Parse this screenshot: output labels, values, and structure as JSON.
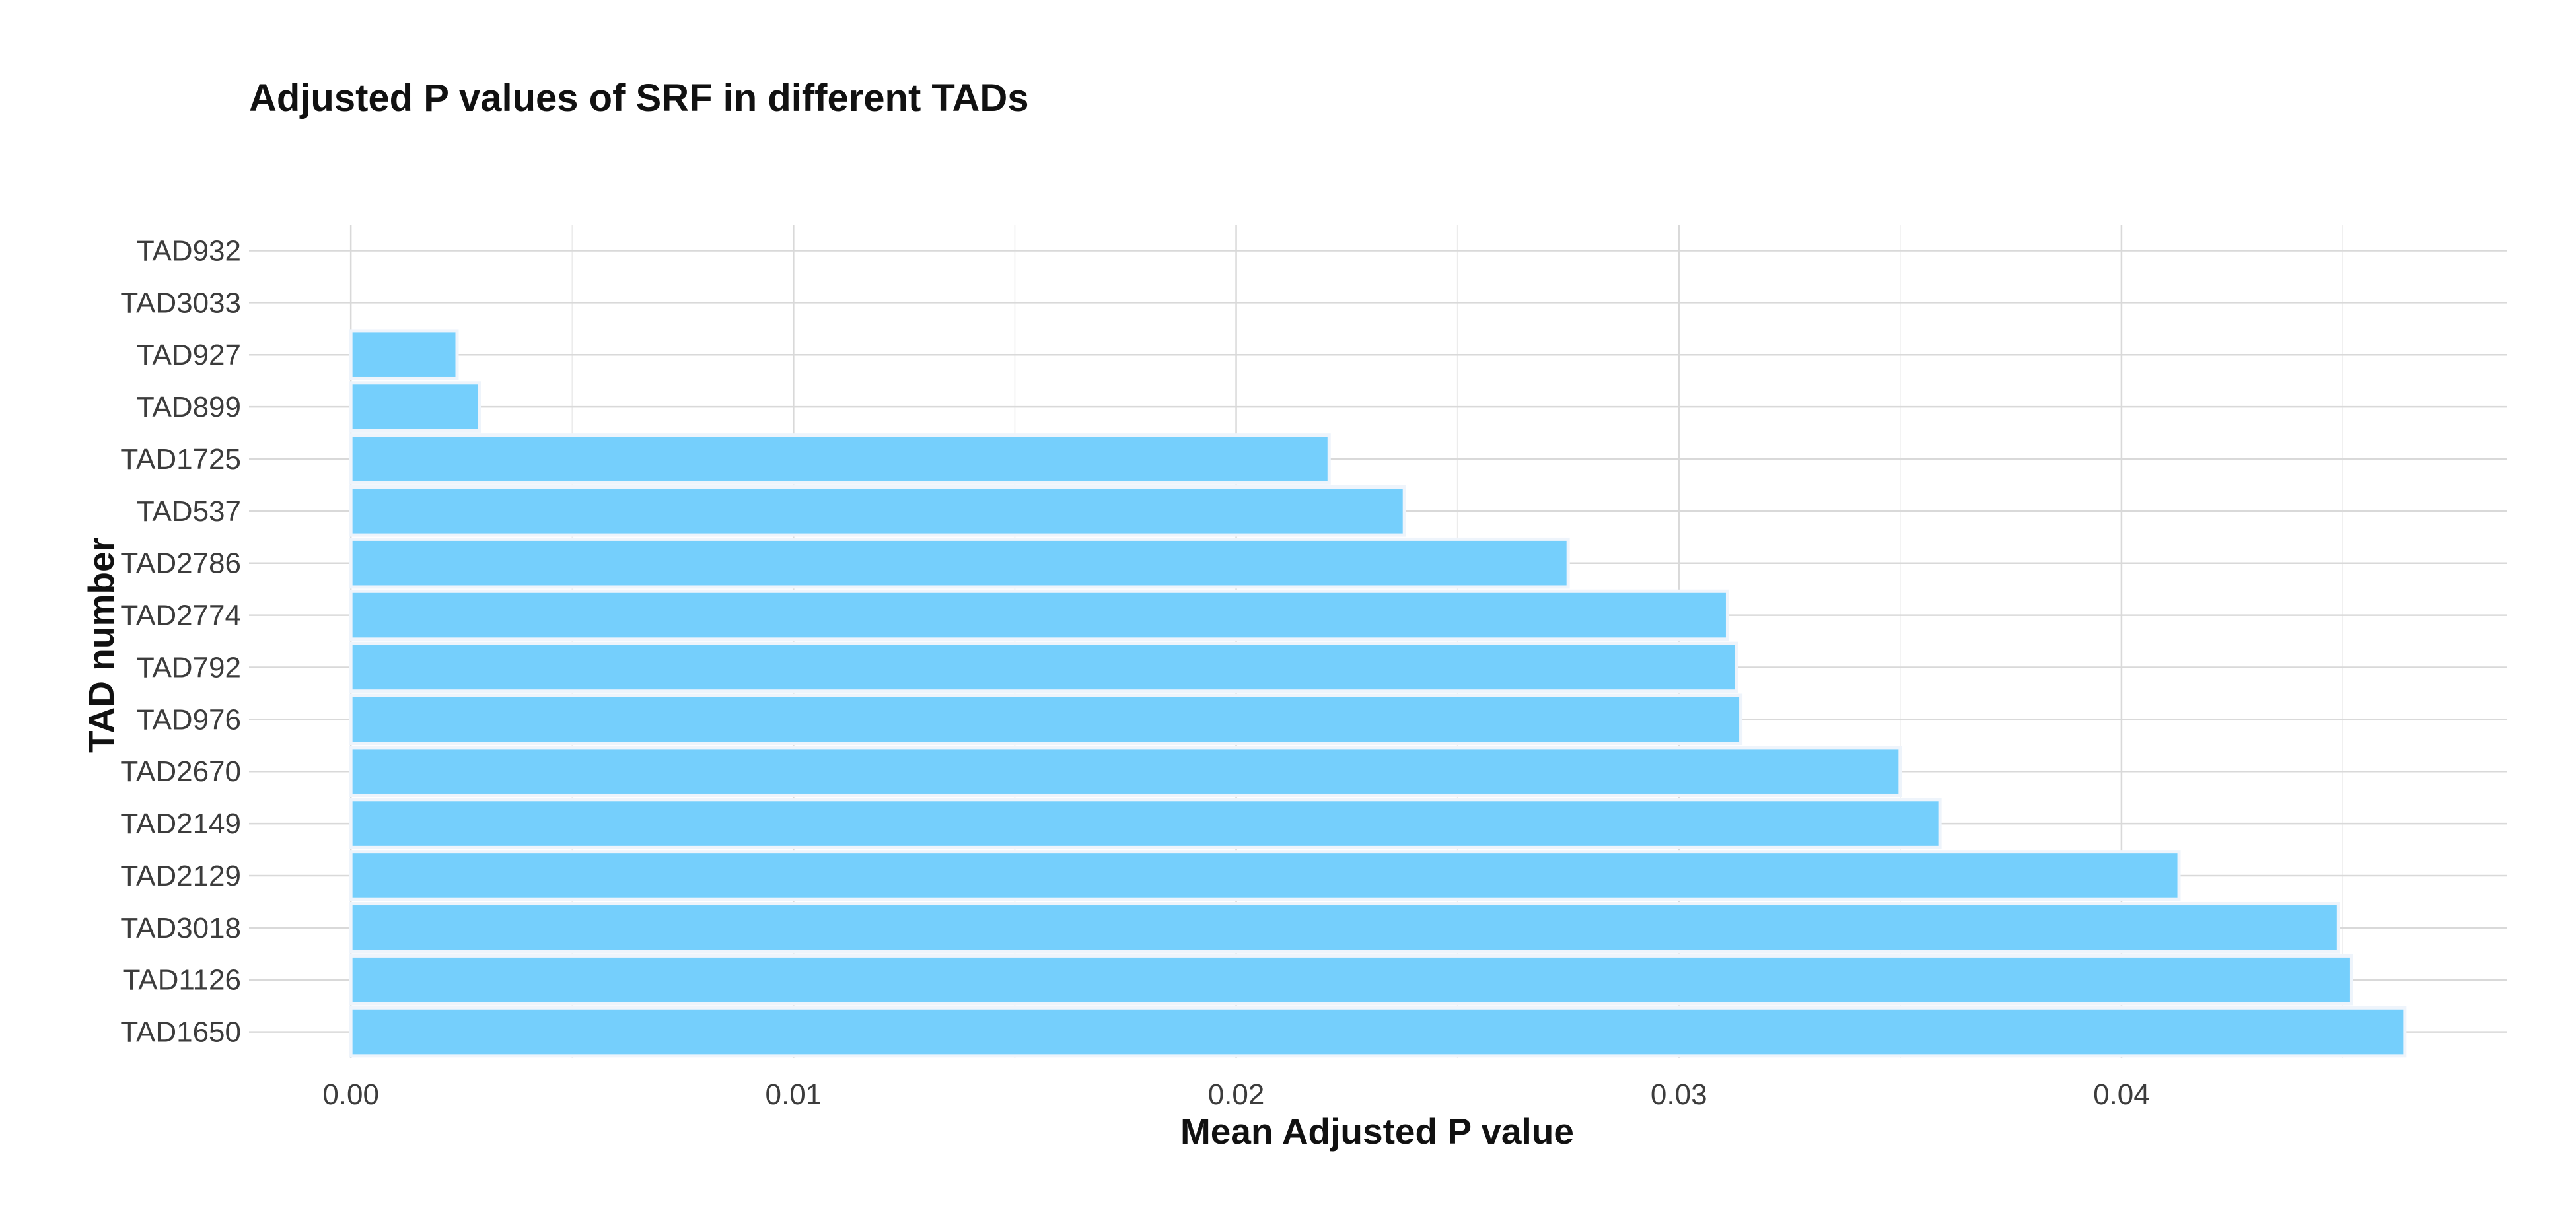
{
  "chart_data": {
    "type": "bar",
    "orientation": "horizontal",
    "title": "Adjusted P values of SRF in different TADs",
    "xlabel": "Mean Adjusted P value",
    "ylabel": "TAD number",
    "xlim": [
      -0.0023,
      0.0487
    ],
    "x_ticks": [
      0.0,
      0.01,
      0.02,
      0.03,
      0.04
    ],
    "x_tick_labels": [
      "0.00",
      "0.01",
      "0.02",
      "0.03",
      "0.04"
    ],
    "x_minor_ticks": [
      0.005,
      0.015,
      0.025,
      0.035,
      0.045
    ],
    "grid": true,
    "bar_color": "#75cffc",
    "categories": [
      "TAD932",
      "TAD3033",
      "TAD927",
      "TAD899",
      "TAD1725",
      "TAD537",
      "TAD2786",
      "TAD2774",
      "TAD792",
      "TAD976",
      "TAD2670",
      "TAD2149",
      "TAD2129",
      "TAD3018",
      "TAD1126",
      "TAD1650"
    ],
    "values": [
      0.0,
      0.0,
      0.0024,
      0.0029,
      0.0221,
      0.0238,
      0.0275,
      0.0311,
      0.0313,
      0.0314,
      0.035,
      0.0359,
      0.0413,
      0.0449,
      0.0452,
      0.0464
    ]
  }
}
